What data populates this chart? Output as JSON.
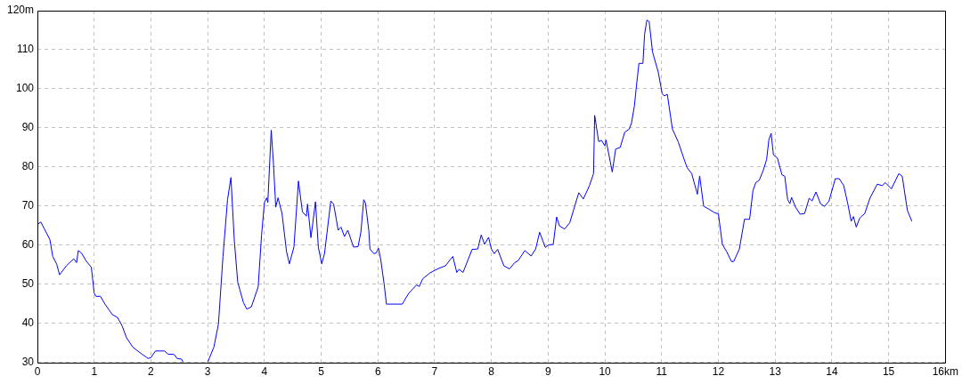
{
  "chart_data": {
    "type": "line",
    "x": [
      0,
      0.06,
      0.22,
      0.27,
      0.34,
      0.39,
      0.51,
      0.64,
      0.69,
      0.72,
      0.78,
      0.86,
      0.95,
      1.0,
      1.03,
      1.11,
      1.19,
      1.32,
      1.41,
      1.49,
      1.57,
      1.68,
      1.84,
      1.95,
      2.0,
      2.08,
      2.24,
      2.3,
      2.41,
      2.46,
      2.54,
      2.57,
      2.8,
      3.0,
      3.11,
      3.19,
      3.27,
      3.35,
      3.41,
      3.47,
      3.53,
      3.63,
      3.69,
      3.77,
      3.89,
      3.95,
      4.0,
      4.04,
      4.06,
      4.12,
      4.16,
      4.2,
      4.24,
      4.31,
      4.39,
      4.44,
      4.52,
      4.6,
      4.67,
      4.74,
      4.76,
      4.82,
      4.9,
      4.95,
      5.01,
      5.06,
      5.17,
      5.22,
      5.3,
      5.35,
      5.41,
      5.47,
      5.57,
      5.65,
      5.7,
      5.75,
      5.78,
      5.84,
      5.86,
      5.93,
      5.97,
      6.01,
      6.05,
      6.11,
      6.15,
      6.43,
      6.54,
      6.68,
      6.73,
      6.79,
      6.92,
      7.05,
      7.19,
      7.32,
      7.39,
      7.43,
      7.5,
      7.59,
      7.66,
      7.76,
      7.82,
      7.88,
      7.95,
      8.0,
      8.05,
      8.11,
      8.22,
      8.32,
      8.41,
      8.47,
      8.59,
      8.7,
      8.78,
      8.85,
      8.95,
      9.0,
      9.09,
      9.15,
      9.2,
      9.29,
      9.38,
      9.54,
      9.62,
      9.73,
      9.8,
      9.82,
      9.89,
      9.94,
      10.0,
      10.02,
      10.13,
      10.19,
      10.27,
      10.35,
      10.43,
      10.47,
      10.52,
      10.55,
      10.6,
      10.67,
      10.7,
      10.74,
      10.78,
      10.84,
      10.94,
      11.01,
      11.05,
      11.1,
      11.19,
      11.29,
      11.4,
      11.45,
      11.53,
      11.63,
      11.67,
      11.74,
      11.83,
      11.9,
      11.93,
      12.0,
      12.07,
      12.15,
      12.23,
      12.27,
      12.37,
      12.46,
      12.55,
      12.61,
      12.66,
      12.72,
      12.79,
      12.85,
      12.89,
      12.93,
      12.97,
      13.04,
      13.12,
      13.17,
      13.22,
      13.26,
      13.29,
      13.36,
      13.44,
      13.52,
      13.6,
      13.65,
      13.72,
      13.8,
      13.87,
      13.95,
      14.06,
      14.13,
      14.21,
      14.28,
      14.34,
      14.38,
      14.43,
      14.49,
      14.58,
      14.67,
      14.8,
      14.89,
      14.94,
      15.05,
      15.18,
      15.24,
      15.33,
      15.41
    ],
    "series": [
      {
        "color": "#0000ff",
        "values": [
          65.3,
          65.9,
          61.4,
          57.1,
          55.1,
          52.4,
          54.7,
          56.5,
          55.5,
          58.6,
          57.9,
          55.9,
          54.3,
          47.7,
          46.9,
          46.9,
          44.9,
          42.2,
          41.5,
          39.4,
          36.3,
          33.9,
          32.1,
          31,
          31.2,
          32.9,
          32.9,
          32.1,
          32,
          31,
          30.8,
          30,
          null,
          30,
          33.9,
          39.8,
          57.1,
          71.6,
          77.3,
          61.1,
          50.5,
          45.3,
          43.6,
          44.2,
          49.3,
          62.6,
          70.9,
          72.1,
          70.9,
          89.4,
          80.7,
          69.7,
          72.1,
          68.1,
          58.3,
          55.2,
          59.5,
          76.4,
          68.5,
          67.4,
          70.5,
          61.9,
          71.1,
          59.5,
          55.2,
          57.9,
          71.3,
          70.5,
          63.8,
          64.6,
          62.2,
          63.8,
          59.5,
          59.6,
          63.3,
          71.6,
          70.8,
          63.7,
          59,
          57.8,
          58,
          59.2,
          56.3,
          50,
          44.9,
          44.9,
          47.6,
          49.8,
          49.4,
          51.4,
          52.9,
          53.9,
          54.7,
          57.1,
          53,
          53.8,
          53,
          56.3,
          58.9,
          59,
          62.6,
          60.2,
          62,
          59,
          57.8,
          58.9,
          54.7,
          53.9,
          55.5,
          56,
          58.6,
          57.2,
          59,
          63.3,
          59.4,
          60,
          60.2,
          67.2,
          64.9,
          64.1,
          65.7,
          73.4,
          71.8,
          75.3,
          78.3,
          93.2,
          86.5,
          86.8,
          85.4,
          86.9,
          78.7,
          84.6,
          85,
          88.9,
          89.7,
          91.3,
          95.6,
          99.9,
          106.5,
          106.5,
          114,
          117.6,
          117.2,
          109.4,
          104.3,
          98.7,
          98.2,
          98.6,
          89.7,
          86.5,
          81.8,
          79.8,
          78.3,
          73,
          77.7,
          70,
          69.2,
          68.6,
          68.3,
          68,
          60.2,
          58.2,
          55.8,
          55.8,
          59,
          66.6,
          66.6,
          74,
          76,
          76.6,
          79.1,
          81.9,
          87,
          88.6,
          83.1,
          82.3,
          78,
          77.6,
          71.7,
          70.6,
          72.2,
          69.7,
          67.9,
          68.1,
          72,
          71.3,
          73.6,
          70.6,
          69.9,
          71.3,
          77,
          77,
          75.2,
          70.6,
          66.1,
          67.3,
          64.6,
          66.9,
          68.1,
          72,
          75.6,
          75.2,
          76,
          74.4,
          78.3,
          77.6,
          68.9,
          66.1
        ]
      }
    ],
    "xlim": [
      0,
      16
    ],
    "xticks": [
      0,
      1,
      2,
      3,
      4,
      5,
      6,
      7,
      8,
      9,
      10,
      11,
      12,
      13,
      14,
      15,
      {
        "value": 16,
        "label": "16km"
      }
    ],
    "ylim": [
      30,
      120
    ],
    "yticks": [
      30,
      40,
      50,
      60,
      70,
      80,
      90,
      100,
      110,
      {
        "value": 120,
        "label": "120m"
      }
    ],
    "grid": true
  }
}
